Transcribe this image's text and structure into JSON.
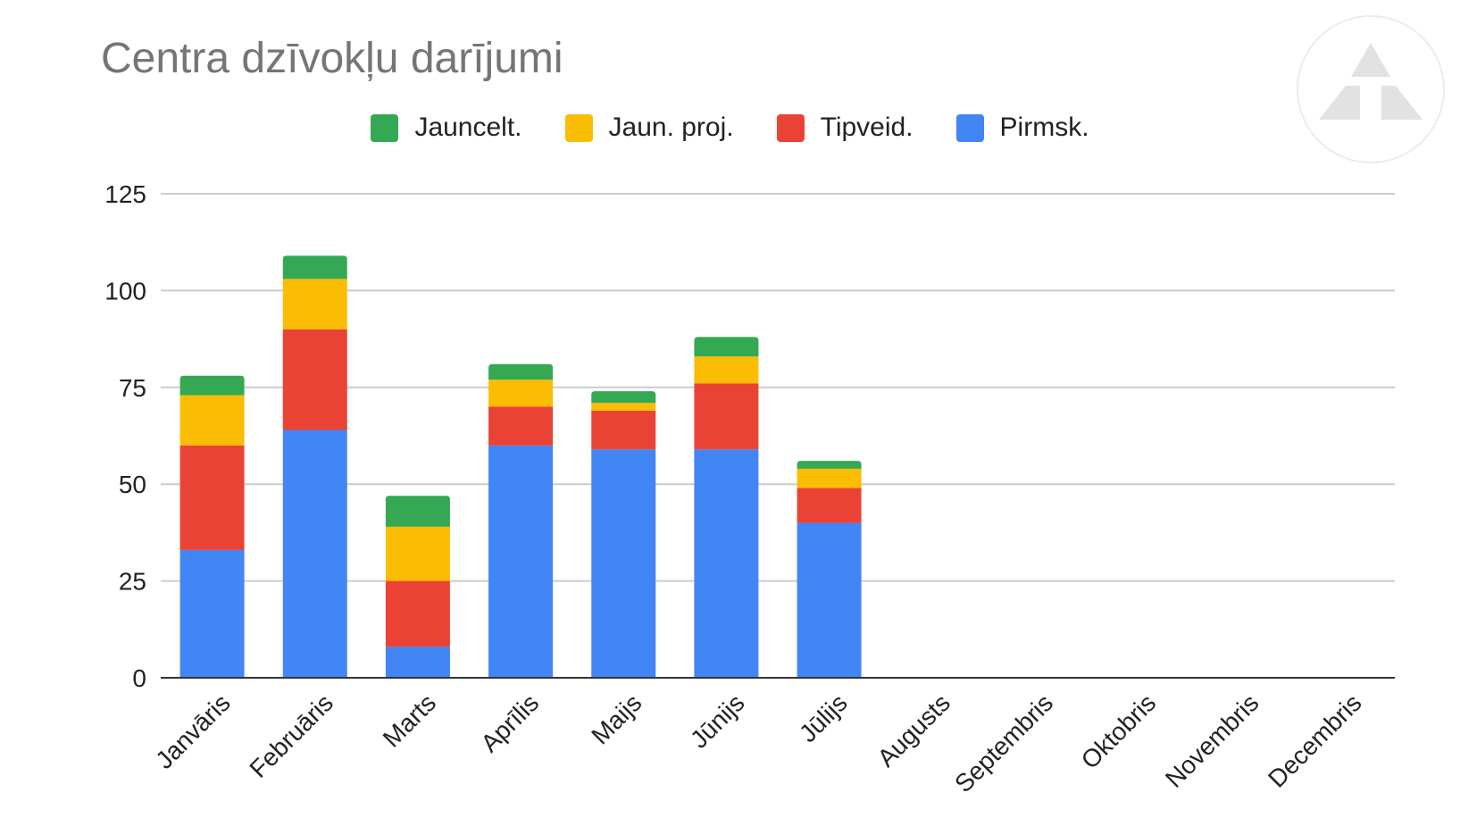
{
  "title": "Centra dzīvokļu darījumi",
  "legend": [
    {
      "label": "Jauncelt.",
      "color": "#34a853"
    },
    {
      "label": "Jaun. proj.",
      "color": "#fbbc04"
    },
    {
      "label": "Tipveid.",
      "color": "#ea4335"
    },
    {
      "label": "Pirmsk.",
      "color": "#4285f4"
    }
  ],
  "chart_data": {
    "type": "bar",
    "stacked": true,
    "title": "Centra dzīvokļu darījumi",
    "xlabel": "",
    "ylabel": "",
    "ylim": [
      0,
      125
    ],
    "yticks": [
      0,
      25,
      50,
      75,
      100,
      125
    ],
    "grid": true,
    "legend_position": "top",
    "categories": [
      "Janvāris",
      "Februāris",
      "Marts",
      "Aprīlis",
      "Maijs",
      "Jūnijs",
      "Jūlijs",
      "Augusts",
      "Septembris",
      "Oktobris",
      "Novembris",
      "Decembris"
    ],
    "series": [
      {
        "name": "Pirmsk.",
        "color": "#4285f4",
        "values": [
          33,
          64,
          8,
          60,
          59,
          59,
          40,
          0,
          0,
          0,
          0,
          0
        ]
      },
      {
        "name": "Tipveid.",
        "color": "#ea4335",
        "values": [
          27,
          26,
          17,
          10,
          10,
          17,
          9,
          0,
          0,
          0,
          0,
          0
        ]
      },
      {
        "name": "Jaun. proj.",
        "color": "#fbbc04",
        "values": [
          13,
          13,
          14,
          7,
          2,
          7,
          5,
          0,
          0,
          0,
          0,
          0
        ]
      },
      {
        "name": "Jauncelt.",
        "color": "#34a853",
        "values": [
          5,
          6,
          8,
          4,
          3,
          5,
          2,
          0,
          0,
          0,
          0,
          0
        ]
      }
    ]
  },
  "watermark_icon": "logo-triangle-icon"
}
